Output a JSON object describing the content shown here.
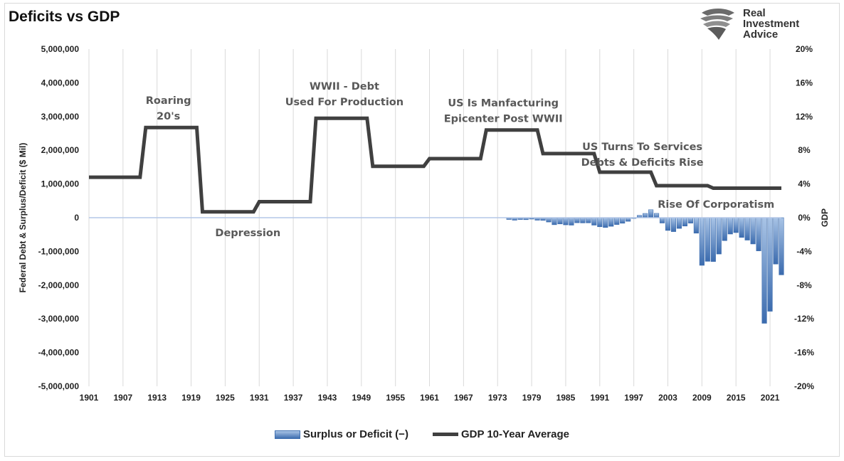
{
  "title": "Deficits vs GDP",
  "logo": {
    "lines": [
      "Real",
      "Investment",
      "Advice"
    ],
    "icon": "eagle-head-icon"
  },
  "chart_data": {
    "type": "bar+line",
    "title": "Deficits vs GDP",
    "ylabel_left": "Federal Debt & Surplus/Deficit ($ Mil)",
    "ylabel_right": "GDP",
    "ylim_left": [
      -5000000,
      5000000
    ],
    "ylim_right": [
      -20,
      20
    ],
    "yticks_left": [
      "5,000,000",
      "4,000,000",
      "3,000,000",
      "2,000,000",
      "1,000,000",
      "0",
      "-1,000,000",
      "-2,000,000",
      "-3,000,000",
      "-4,000,000",
      "-5,000,000"
    ],
    "yticks_right": [
      "20%",
      "16%",
      "12%",
      "8%",
      "4%",
      "0%",
      "-4%",
      "-8%",
      "-12%",
      "-16%",
      "-20%"
    ],
    "xticks": [
      "1901",
      "1907",
      "1913",
      "1919",
      "1925",
      "1931",
      "1937",
      "1943",
      "1949",
      "1955",
      "1961",
      "1967",
      "1973",
      "1979",
      "1985",
      "1991",
      "1997",
      "2003",
      "2009",
      "2015",
      "2021"
    ],
    "x_range": [
      1901,
      2023
    ],
    "grid": "vertical",
    "legend_position": "bottom",
    "series": [
      {
        "name": "Surplus or Deficit (−)",
        "kind": "bar",
        "axis": "left",
        "color": "#4472c4",
        "x": [
          1975,
          1976,
          1977,
          1978,
          1979,
          1980,
          1981,
          1982,
          1983,
          1984,
          1985,
          1986,
          1987,
          1988,
          1989,
          1990,
          1991,
          1992,
          1993,
          1994,
          1995,
          1996,
          1997,
          1998,
          1999,
          2000,
          2001,
          2002,
          2003,
          2004,
          2005,
          2006,
          2007,
          2008,
          2009,
          2010,
          2011,
          2012,
          2013,
          2014,
          2015,
          2016,
          2017,
          2018,
          2019,
          2020,
          2021,
          2022,
          2023
        ],
        "values": [
          -53000,
          -74000,
          -54000,
          -59000,
          -41000,
          -74000,
          -79000,
          -128000,
          -208000,
          -185000,
          -212000,
          -221000,
          -150000,
          -155000,
          -153000,
          -221000,
          -269000,
          -290000,
          -255000,
          -203000,
          -164000,
          -107000,
          -22000,
          69000,
          126000,
          236000,
          128000,
          -158000,
          -378000,
          -413000,
          -318000,
          -248000,
          -161000,
          -459000,
          -1413000,
          -1294000,
          -1300000,
          -1077000,
          -680000,
          -485000,
          -442000,
          -585000,
          -665000,
          -779000,
          -984000,
          -3132000,
          -2775000,
          -1375000,
          -1695000
        ]
      },
      {
        "name": "GDP 10-Year Average",
        "kind": "step-line",
        "axis": "right",
        "color": "#404040",
        "x": [
          1901,
          1910,
          1911,
          1920,
          1921,
          1930,
          1931,
          1940,
          1941,
          1950,
          1951,
          1960,
          1961,
          1970,
          1971,
          1980,
          1981,
          1990,
          1991,
          2000,
          2001,
          2010,
          2011,
          2023
        ],
        "values": [
          4.8,
          4.8,
          10.7,
          10.7,
          0.7,
          0.7,
          1.9,
          1.9,
          11.8,
          11.8,
          6.1,
          6.1,
          7.0,
          7.0,
          10.4,
          10.4,
          7.6,
          7.6,
          5.4,
          5.4,
          3.8,
          3.8,
          3.5,
          3.5
        ]
      }
    ],
    "annotations": [
      {
        "lines": [
          "Roaring",
          "20's"
        ],
        "x": 1915,
        "y_pct": 13.5
      },
      {
        "lines": [
          "Depression"
        ],
        "x": 1929,
        "y_pct": -2.2
      },
      {
        "lines": [
          "WWII - Debt",
          "Used For Production"
        ],
        "x": 1946,
        "y_pct": 15.2
      },
      {
        "lines": [
          "US Is Manfacturing",
          "Epicenter Post WWII"
        ],
        "x": 1974,
        "y_pct": 13.2
      },
      {
        "lines": [
          "US Turns To Services",
          "Debts & Deficits Rise"
        ],
        "x": 1998.5,
        "y_pct": 8.0
      },
      {
        "lines": [
          "Rise Of Corporatism"
        ],
        "x": 2011.5,
        "y_pct": 1.2
      }
    ]
  }
}
